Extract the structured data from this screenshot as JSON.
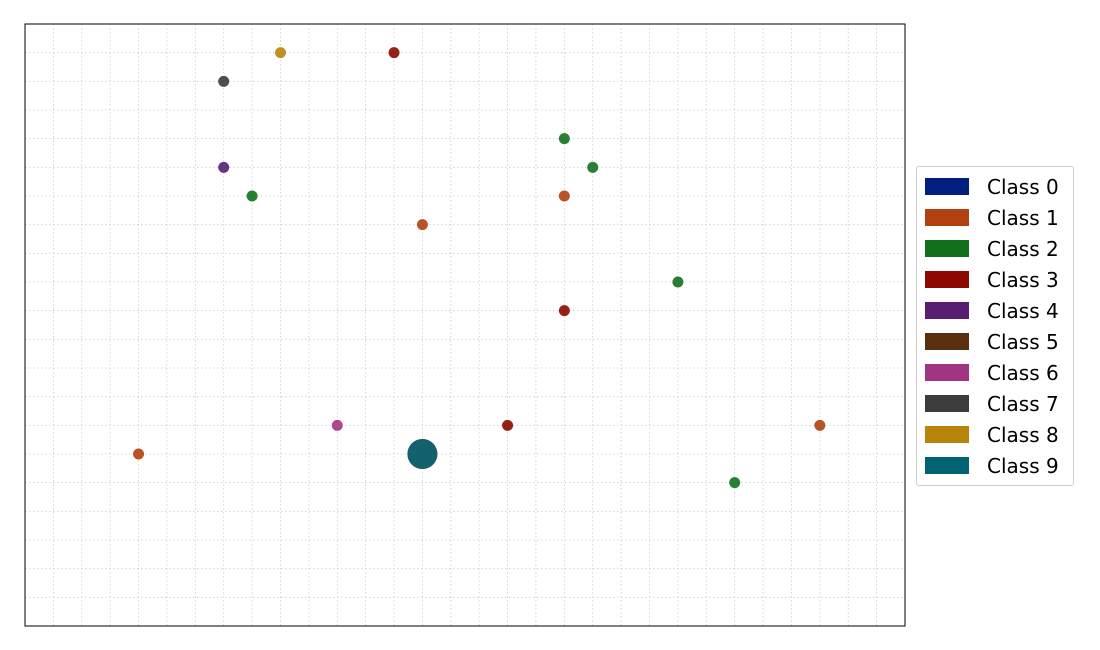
{
  "chart_data": {
    "type": "scatter",
    "title": "",
    "xlabel": "",
    "ylabel": "",
    "xlim": [
      0,
      31
    ],
    "ylim": [
      0,
      21
    ],
    "grid": true,
    "legend_position": "right",
    "classes": [
      {
        "name": "Class 0",
        "color": "#001f7f"
      },
      {
        "name": "Class 1",
        "color": "#b3400f"
      },
      {
        "name": "Class 2",
        "color": "#12711c"
      },
      {
        "name": "Class 3",
        "color": "#8c0800"
      },
      {
        "name": "Class 4",
        "color": "#591e71"
      },
      {
        "name": "Class 5",
        "color": "#592f0d"
      },
      {
        "name": "Class 6",
        "color": "#a23582"
      },
      {
        "name": "Class 7",
        "color": "#3c3c3c"
      },
      {
        "name": "Class 8",
        "color": "#b8850a"
      },
      {
        "name": "Class 9",
        "color": "#006374"
      }
    ],
    "points": [
      {
        "x": 9,
        "y": 20,
        "cls": 8,
        "size": 1
      },
      {
        "x": 13,
        "y": 20,
        "cls": 3,
        "size": 1
      },
      {
        "x": 7,
        "y": 19,
        "cls": 7,
        "size": 1
      },
      {
        "x": 19,
        "y": 17,
        "cls": 2,
        "size": 1
      },
      {
        "x": 7,
        "y": 16,
        "cls": 4,
        "size": 1
      },
      {
        "x": 20,
        "y": 16,
        "cls": 2,
        "size": 1
      },
      {
        "x": 8,
        "y": 15,
        "cls": 2,
        "size": 1
      },
      {
        "x": 19,
        "y": 15,
        "cls": 1,
        "size": 1
      },
      {
        "x": 14,
        "y": 14,
        "cls": 1,
        "size": 1
      },
      {
        "x": 23,
        "y": 12,
        "cls": 2,
        "size": 1
      },
      {
        "x": 19,
        "y": 11,
        "cls": 3,
        "size": 1
      },
      {
        "x": 11,
        "y": 7,
        "cls": 6,
        "size": 1
      },
      {
        "x": 17,
        "y": 7,
        "cls": 3,
        "size": 1
      },
      {
        "x": 28,
        "y": 7,
        "cls": 1,
        "size": 1
      },
      {
        "x": 4,
        "y": 6,
        "cls": 1,
        "size": 1
      },
      {
        "x": 14,
        "y": 6,
        "cls": 1,
        "size": 3
      },
      {
        "x": 14,
        "y": 6,
        "cls": 9,
        "size": 3
      },
      {
        "x": 25,
        "y": 5,
        "cls": 2,
        "size": 1
      }
    ]
  }
}
